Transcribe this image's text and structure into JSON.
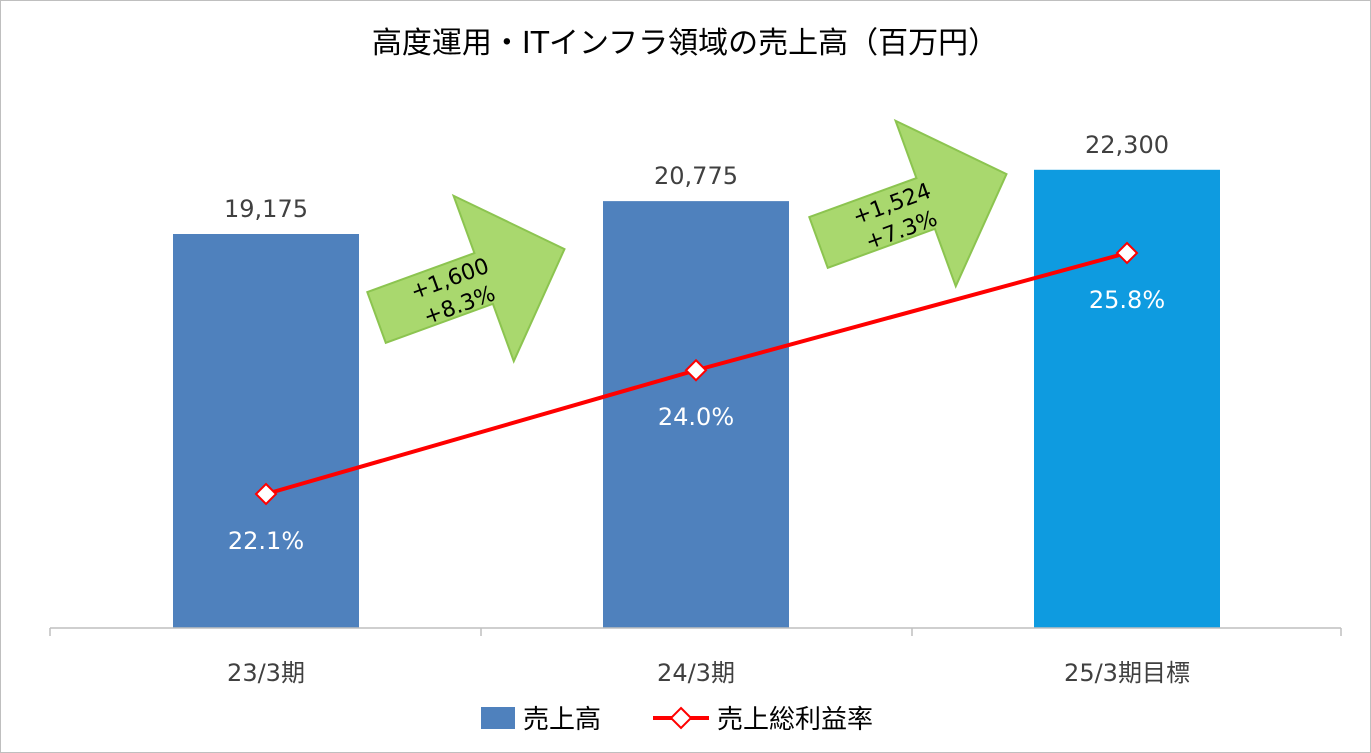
{
  "chart_data": {
    "type": "bar",
    "title": "高度運用・ITインフラ領域の売上高（百万円）",
    "categories": [
      "23/3期",
      "24/3期",
      "25/3期目標"
    ],
    "series": [
      {
        "name": "売上高",
        "kind": "bar",
        "values": [
          19175,
          20775,
          22300
        ],
        "labels": [
          "19,175",
          "20,775",
          "22,300"
        ],
        "colors": [
          "#4f81bd",
          "#4f81bd",
          "#0e9be0"
        ]
      },
      {
        "name": "売上総利益率",
        "kind": "line",
        "values": [
          22.1,
          24.0,
          25.8
        ],
        "labels": [
          "22.1%",
          "24.0%",
          "25.8%"
        ],
        "color": "#ff0000"
      }
    ],
    "arrows": [
      {
        "line1": "+1,600",
        "line2": "+8.3%",
        "color": "#a9d86e"
      },
      {
        "line1": "+1,524",
        "line2": "+7.3%",
        "color": "#a9d86e"
      }
    ],
    "legend_position": "bottom",
    "grid": false
  }
}
